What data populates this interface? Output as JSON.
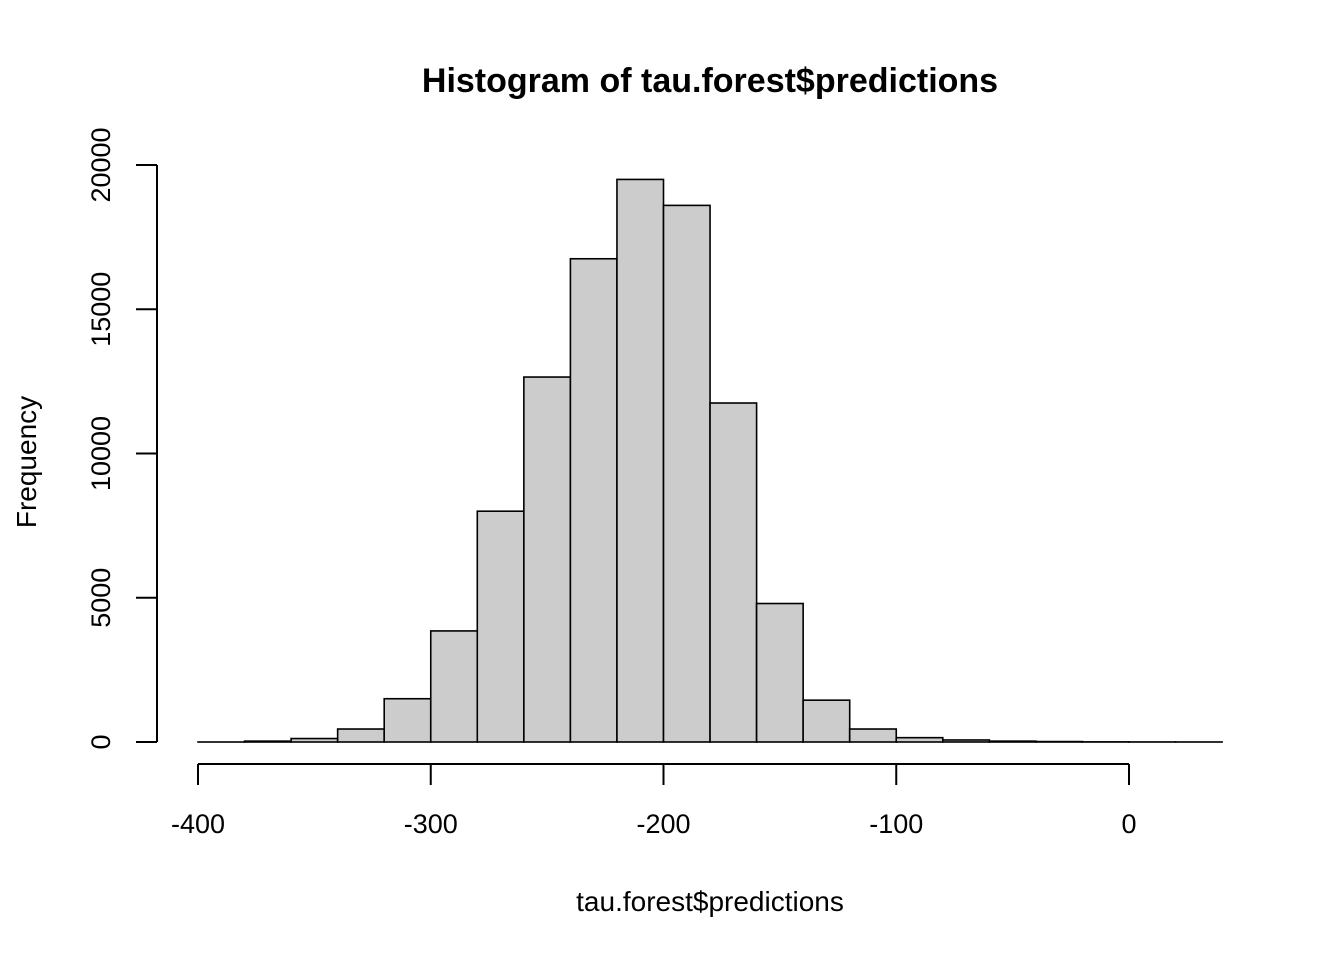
{
  "chart_data": {
    "type": "bar",
    "title": "Histogram of tau.forest$predictions",
    "xlabel": "tau.forest$predictions",
    "ylabel": "Frequency",
    "xlim": [
      -400,
      40
    ],
    "ylim": [
      0,
      20000
    ],
    "x_ticks": [
      -400,
      -300,
      -200,
      -100,
      0
    ],
    "y_ticks": [
      0,
      5000,
      10000,
      15000,
      20000
    ],
    "bin_width": 20,
    "bins": [
      {
        "start": -400,
        "end": -380,
        "count": 0
      },
      {
        "start": -380,
        "end": -360,
        "count": 30
      },
      {
        "start": -360,
        "end": -340,
        "count": 120
      },
      {
        "start": -340,
        "end": -320,
        "count": 450
      },
      {
        "start": -320,
        "end": -300,
        "count": 1500
      },
      {
        "start": -300,
        "end": -280,
        "count": 3850
      },
      {
        "start": -280,
        "end": -260,
        "count": 8000
      },
      {
        "start": -260,
        "end": -240,
        "count": 12650
      },
      {
        "start": -240,
        "end": -220,
        "count": 16750
      },
      {
        "start": -220,
        "end": -200,
        "count": 19500
      },
      {
        "start": -200,
        "end": -180,
        "count": 18600
      },
      {
        "start": -180,
        "end": -160,
        "count": 11750
      },
      {
        "start": -160,
        "end": -140,
        "count": 4800
      },
      {
        "start": -140,
        "end": -120,
        "count": 1450
      },
      {
        "start": -120,
        "end": -100,
        "count": 450
      },
      {
        "start": -100,
        "end": -80,
        "count": 150
      },
      {
        "start": -80,
        "end": -60,
        "count": 70
      },
      {
        "start": -60,
        "end": -40,
        "count": 30
      },
      {
        "start": -40,
        "end": -20,
        "count": 15
      },
      {
        "start": -20,
        "end": 0,
        "count": 5
      },
      {
        "start": 0,
        "end": 20,
        "count": 2
      },
      {
        "start": 20,
        "end": 40,
        "count": 1
      }
    ],
    "bar_fill": "#cccccc",
    "bar_stroke": "#000000",
    "grid": false,
    "legend": "none"
  }
}
